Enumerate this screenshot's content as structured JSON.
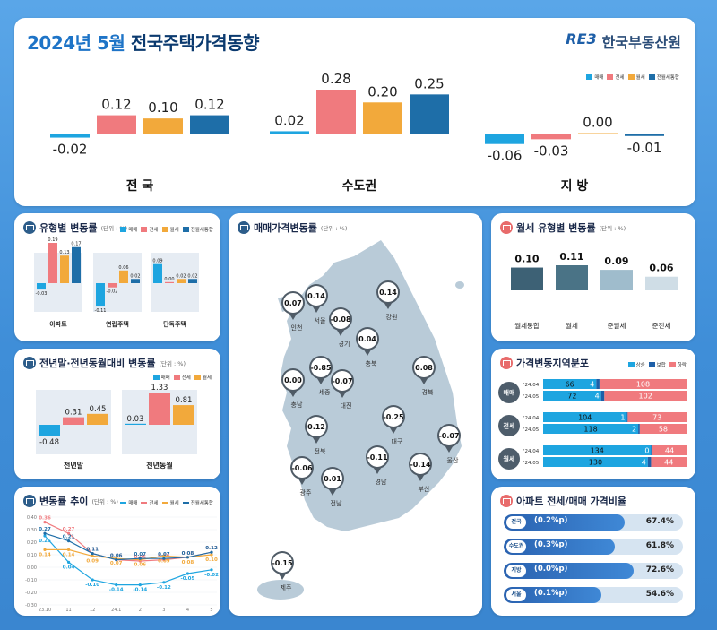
{
  "header": {
    "title_year": "2024년 5월",
    "title_rest": "전국주택가격동향",
    "logo_mark": "RE3",
    "logo_text": "한국부동산원",
    "legend": [
      "매매",
      "전세",
      "월세",
      "전월세통합"
    ]
  },
  "colors": {
    "sale": "#1ea5e0",
    "jeonse": "#f07a7e",
    "monthly": "#f2a93b",
    "combined": "#1e6ea8",
    "up": "#f07a7e",
    "flat": "#1e5fa8",
    "down": "#1ea5e0"
  },
  "chart_data": [
    {
      "type": "bar",
      "categories": [
        "전 국",
        "수도권",
        "지 방"
      ],
      "series": [
        {
          "name": "매매",
          "values": [
            -0.02,
            0.02,
            -0.06
          ]
        },
        {
          "name": "전세",
          "values": [
            0.12,
            0.28,
            -0.03
          ]
        },
        {
          "name": "월세",
          "values": [
            0.1,
            0.2,
            0.0
          ]
        },
        {
          "name": "전월세통합",
          "values": [
            0.12,
            0.25,
            -0.01
          ]
        }
      ],
      "labels": [
        [
          "-0.02",
          "0.12",
          "0.10",
          "0.12"
        ],
        [
          "0.02",
          "0.28",
          "0.20",
          "0.25"
        ],
        [
          "-0.06",
          "-0.03",
          "0.00",
          "-0.01"
        ]
      ],
      "legend_position": "top-right"
    },
    {
      "type": "bar",
      "title": "유형별 변동률",
      "unit": "(단위 : %)",
      "categories": [
        "아파트",
        "연립주택",
        "단독주택"
      ],
      "series": [
        {
          "name": "매매",
          "values": [
            -0.03,
            -0.11,
            0.09
          ]
        },
        {
          "name": "전세",
          "values": [
            0.19,
            -0.02,
            0.0
          ]
        },
        {
          "name": "월세",
          "values": [
            0.13,
            0.06,
            0.02
          ]
        },
        {
          "name": "전월세통합",
          "values": [
            0.17,
            0.02,
            0.02
          ]
        }
      ],
      "labels": [
        [
          "-0.03",
          "0.19",
          "0.13",
          "0.17"
        ],
        [
          "-0.11",
          "-0.02",
          "0.06",
          "0.02"
        ],
        [
          "0.09",
          "0.00",
          "0.02",
          "0.02"
        ]
      ],
      "legend_labels": [
        "매매",
        "전세",
        "월세",
        "전월세통합"
      ]
    },
    {
      "type": "bar",
      "title": "전년말·전년동월대비 변동률",
      "unit": "(단위 : %)",
      "categories": [
        "전년말",
        "전년동월"
      ],
      "series": [
        {
          "name": "매매",
          "values": [
            -0.48,
            0.03
          ]
        },
        {
          "name": "전세",
          "values": [
            0.31,
            1.33
          ]
        },
        {
          "name": "월세",
          "values": [
            0.45,
            0.81
          ]
        }
      ],
      "labels": [
        [
          "-0.48",
          "0.31",
          "0.45"
        ],
        [
          "0.03",
          "1.33",
          "0.81"
        ]
      ],
      "legend_labels": [
        "매매",
        "전세",
        "월세"
      ]
    },
    {
      "type": "line",
      "title": "변동률 추이",
      "unit": "(단위 : %)",
      "x": [
        "23.10",
        "11",
        "12",
        "24.1",
        "2",
        "3",
        "4",
        "5"
      ],
      "y_ticks": [
        "0.40",
        "0.30",
        "0.20",
        "0.10",
        "0.00",
        "-0.10",
        "-0.20",
        "-0.30"
      ],
      "ylim": [
        -0.3,
        0.4
      ],
      "series": [
        {
          "name": "매매",
          "values": [
            0.25,
            0.04,
            -0.1,
            -0.14,
            -0.14,
            -0.12,
            -0.05,
            -0.02
          ]
        },
        {
          "name": "전세",
          "values": [
            0.36,
            0.27,
            0.11,
            0.06,
            0.05,
            0.06,
            0.08,
            0.12
          ]
        },
        {
          "name": "월세",
          "values": [
            0.14,
            0.14,
            0.09,
            0.07,
            0.06,
            0.09,
            0.08,
            0.1
          ]
        },
        {
          "name": "전월세통합",
          "values": [
            0.27,
            0.21,
            0.11,
            0.06,
            0.07,
            0.07,
            0.08,
            0.12
          ]
        }
      ],
      "labels": [
        [
          "0.25",
          "0.04",
          "-0.10",
          "-0.14",
          "-0.14",
          "-0.12",
          "-0.05",
          "-0.02"
        ],
        [
          "0.36",
          "0.27",
          "0.11",
          "0.06",
          "0.05",
          "0.06",
          "0.08",
          "0.12"
        ],
        [
          "0.14",
          "0.14",
          "0.09",
          "0.07",
          "0.06",
          "0.09",
          "0.08",
          "0.10"
        ],
        [
          "0.27",
          "0.21",
          "0.11",
          "0.06",
          "0.07",
          "0.07",
          "0.08",
          "0.12"
        ]
      ],
      "legend_labels": [
        "매매",
        "전세",
        "월세",
        "전월세통합"
      ]
    },
    {
      "type": "bar",
      "title": "월세 유형별 변동률",
      "unit": "(단위 : %)",
      "categories": [
        "월세통합",
        "월세",
        "준월세",
        "준전세"
      ],
      "values": [
        0.1,
        0.11,
        0.09,
        0.06
      ],
      "labels": [
        "0.10",
        "0.11",
        "0.09",
        "0.06"
      ],
      "colors": [
        "#3d6175",
        "#4a7386",
        "#9fbccc",
        "#cfdde6"
      ]
    },
    {
      "type": "bar",
      "stacked": true,
      "title": "가격변동지역분포",
      "legend_labels": [
        "상승",
        "보합",
        "하락"
      ],
      "groups": [
        "매매",
        "전세",
        "월세"
      ],
      "rows": [
        {
          "group": "매매",
          "period": "'24.04",
          "up": 66,
          "flat": 4,
          "down": 108
        },
        {
          "group": "매매",
          "period": "'24.05",
          "up": 72,
          "flat": 4,
          "down": 102
        },
        {
          "group": "전세",
          "period": "'24.04",
          "up": 104,
          "flat": 1,
          "down": 73
        },
        {
          "group": "전세",
          "period": "'24.05",
          "up": 118,
          "flat": 2,
          "down": 58
        },
        {
          "group": "월세",
          "period": "'24.04",
          "up": 134,
          "flat": 0,
          "down": 44
        },
        {
          "group": "월세",
          "period": "'24.05",
          "up": 130,
          "flat": 4,
          "down": 44
        }
      ],
      "row_labels": [
        [
          "'24.04",
          "66",
          "4",
          "108"
        ],
        [
          "'24.05",
          "72",
          "4",
          "102"
        ],
        [
          "'24.04",
          "104",
          "1",
          "73"
        ],
        [
          "'24.05",
          "118",
          "2",
          "58"
        ],
        [
          "'24.04",
          "134",
          "0",
          "44"
        ],
        [
          "'24.05",
          "130",
          "4",
          "44"
        ]
      ]
    },
    {
      "type": "bar",
      "title": "아파트 전세/매매 가격비율",
      "categories": [
        "전국",
        "수도권",
        "지방",
        "서울"
      ],
      "values": [
        67.4,
        61.8,
        72.6,
        54.6
      ],
      "value_labels": [
        "67.4%",
        "61.8%",
        "72.6%",
        "54.6%"
      ],
      "changes": [
        "(0.2%p)",
        "(0.3%p)",
        "(0.0%p)",
        "(0.1%p)"
      ]
    }
  ],
  "map": {
    "title": "매매가격변동률",
    "unit": "(단위 : %)",
    "regions": [
      {
        "name": "인천",
        "value": "0.07"
      },
      {
        "name": "서울",
        "value": "0.14"
      },
      {
        "name": "경기",
        "value": "-0.08"
      },
      {
        "name": "강원",
        "value": "0.14"
      },
      {
        "name": "충북",
        "value": "0.04"
      },
      {
        "name": "세종",
        "value": "-0.85"
      },
      {
        "name": "대전",
        "value": "-0.07"
      },
      {
        "name": "충남",
        "value": "0.00"
      },
      {
        "name": "경북",
        "value": "0.08"
      },
      {
        "name": "전북",
        "value": "0.12"
      },
      {
        "name": "대구",
        "value": "-0.25"
      },
      {
        "name": "울산",
        "value": "-0.07"
      },
      {
        "name": "경남",
        "value": "-0.11"
      },
      {
        "name": "부산",
        "value": "-0.14"
      },
      {
        "name": "광주",
        "value": "-0.06"
      },
      {
        "name": "전남",
        "value": "0.01"
      },
      {
        "name": "제주",
        "value": "-0.15"
      }
    ]
  }
}
